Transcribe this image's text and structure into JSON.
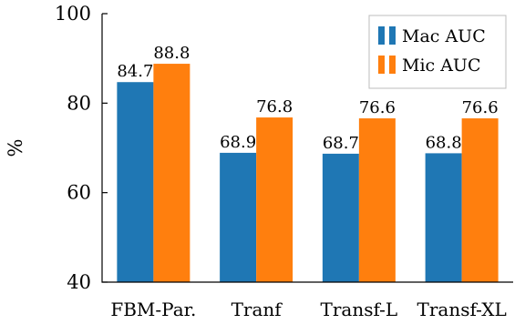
{
  "chart_data": {
    "type": "bar",
    "title": "",
    "xlabel": "",
    "ylabel": "%",
    "ylim": [
      40,
      100
    ],
    "yticks": [
      40,
      60,
      80,
      100
    ],
    "categories": [
      "FBM-Par.",
      "Tranf",
      "Transf-L",
      "Transf-XL"
    ],
    "series": [
      {
        "name": "Mac AUC",
        "color": "#1f77b4",
        "values": [
          84.7,
          68.9,
          68.7,
          68.8
        ],
        "labels": [
          "84.7",
          "68.9",
          "68.7",
          "68.8"
        ]
      },
      {
        "name": "Mic AUC",
        "color": "#ff7f0e",
        "values": [
          88.8,
          76.8,
          76.6,
          76.6
        ],
        "labels": [
          "88.8",
          "76.8",
          "76.6",
          "76.6"
        ]
      }
    ],
    "legend_position": "top-right",
    "grid": false
  }
}
